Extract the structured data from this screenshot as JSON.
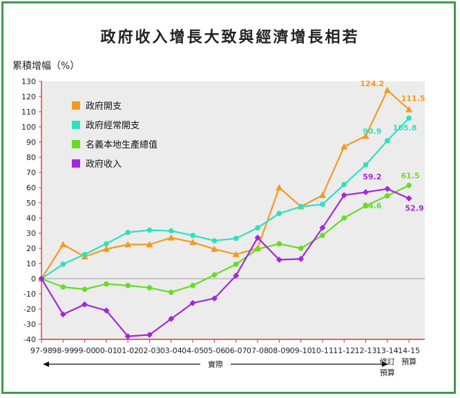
{
  "chart_data": {
    "type": "line",
    "title": "政府收入增長大致與經濟增長相若",
    "ylabel": "累積增幅（%）",
    "ylim": [
      -40,
      130
    ],
    "yticks": [
      -40,
      -30,
      -20,
      -10,
      0,
      10,
      20,
      30,
      40,
      50,
      60,
      70,
      80,
      90,
      100,
      110,
      120,
      130
    ],
    "categories": [
      "97-98",
      "98-99",
      "99-00",
      "00-01",
      "01-02",
      "02-03",
      "03-04",
      "04-05",
      "05-06",
      "06-07",
      "07-08",
      "08-09",
      "09-10",
      "10-11",
      "11-12",
      "12-13",
      "13-14",
      "14-15"
    ],
    "x_annotations": {
      "actual": "實際",
      "revised_line1": "修訂",
      "revised_line2": "預算",
      "budget": "預算"
    },
    "grid": false,
    "legend_position": "top-left",
    "series": [
      {
        "name": "政府開支",
        "color": "#f39a1e",
        "marker": "triangle",
        "values": [
          0,
          22.5,
          14.5,
          19.5,
          22.5,
          22.5,
          27,
          24,
          19.5,
          16,
          20,
          60,
          47.5,
          55,
          87,
          94,
          124.2,
          111.5
        ],
        "labels": [
          {
            "index": 16,
            "text": "124.2"
          },
          {
            "index": 17,
            "text": "111.5"
          }
        ]
      },
      {
        "name": "政府經常開支",
        "color": "#2ee0c0",
        "marker": "circle",
        "values": [
          0,
          9.5,
          16,
          23,
          30.5,
          32,
          31.5,
          28.5,
          25,
          26.5,
          33.5,
          43,
          47.5,
          49,
          62,
          75,
          90.9,
          105.8
        ],
        "labels": [
          {
            "index": 16,
            "text": "90.9"
          },
          {
            "index": 17,
            "text": "105.8"
          }
        ]
      },
      {
        "name": "名義本地生產總值",
        "color": "#66dd22",
        "marker": "circle",
        "values": [
          0,
          -5.5,
          -7,
          -3.5,
          -4.5,
          -6,
          -9,
          -4.5,
          2.5,
          9.5,
          19.5,
          23,
          20,
          28.5,
          40,
          48,
          54.6,
          61.5
        ],
        "labels": [
          {
            "index": 16,
            "text": "54.6"
          },
          {
            "index": 17,
            "text": "61.5"
          }
        ]
      },
      {
        "name": "政府收入",
        "color": "#a326e0",
        "marker": "diamond",
        "values": [
          0,
          -23.5,
          -17,
          -21,
          -38,
          -37,
          -26.5,
          -16,
          -13,
          2,
          27,
          12.5,
          13,
          33.5,
          55,
          57,
          59.2,
          52.9
        ],
        "labels": [
          {
            "index": 16,
            "text": "59.2"
          },
          {
            "index": 17,
            "text": "52.9"
          }
        ]
      }
    ]
  }
}
